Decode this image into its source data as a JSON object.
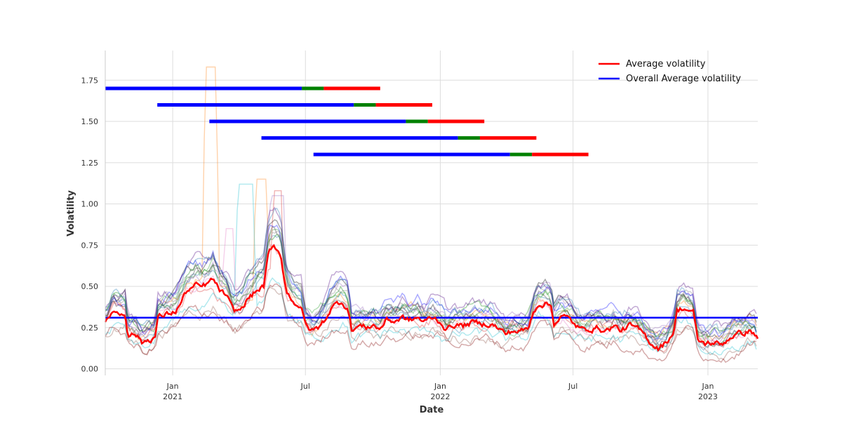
{
  "chart_data": {
    "type": "line",
    "xlabel": "Date",
    "ylabel": "Volatility",
    "xlim": [
      "2020-10-01",
      "2023-03-10"
    ],
    "ylim": [
      -0.04,
      1.93
    ],
    "y_ticks": [
      0.0,
      0.25,
      0.5,
      0.75,
      1.0,
      1.25,
      1.5,
      1.75
    ],
    "y_tick_labels": [
      "0.00",
      "0.25",
      "0.50",
      "0.75",
      "1.00",
      "1.25",
      "1.50",
      "1.75"
    ],
    "x_ticks": [
      {
        "date": "2021-01-01",
        "label": "Jan",
        "year": "2021"
      },
      {
        "date": "2021-07-01",
        "label": "Jul",
        "year": ""
      },
      {
        "date": "2022-01-01",
        "label": "Jan",
        "year": "2022"
      },
      {
        "date": "2022-07-01",
        "label": "Jul",
        "year": ""
      },
      {
        "date": "2023-01-01",
        "label": "Jan",
        "year": "2023"
      }
    ],
    "grid": true,
    "legend_position": "top-right",
    "legend": [
      {
        "label": "Average volatility",
        "color": "#ff0000"
      },
      {
        "label": "Overall Average volatility",
        "color": "#0000ff"
      }
    ],
    "average_volatility": {
      "name": "Average volatility",
      "color": "#ff0000",
      "points": [
        [
          "2020-10-01",
          0.27
        ],
        [
          "2020-10-06",
          0.29
        ],
        [
          "2020-10-12",
          0.36
        ],
        [
          "2020-10-20",
          0.33
        ],
        [
          "2020-10-28",
          0.34
        ],
        [
          "2020-11-01",
          0.22
        ],
        [
          "2020-11-12",
          0.21
        ],
        [
          "2020-11-20",
          0.16
        ],
        [
          "2020-12-01",
          0.18
        ],
        [
          "2020-12-08",
          0.2
        ],
        [
          "2020-12-12",
          0.31
        ],
        [
          "2020-12-25",
          0.33
        ],
        [
          "2021-01-05",
          0.35
        ],
        [
          "2021-01-12",
          0.4
        ],
        [
          "2021-01-20",
          0.47
        ],
        [
          "2021-02-01",
          0.5
        ],
        [
          "2021-02-10",
          0.49
        ],
        [
          "2021-02-20",
          0.52
        ],
        [
          "2021-02-25",
          0.54
        ],
        [
          "2021-03-05",
          0.48
        ],
        [
          "2021-03-15",
          0.44
        ],
        [
          "2021-03-25",
          0.34
        ],
        [
          "2021-04-05",
          0.36
        ],
        [
          "2021-04-12",
          0.42
        ],
        [
          "2021-04-20",
          0.45
        ],
        [
          "2021-04-28",
          0.48
        ],
        [
          "2021-05-05",
          0.5
        ],
        [
          "2021-05-12",
          0.7
        ],
        [
          "2021-05-20",
          0.73
        ],
        [
          "2021-05-28",
          0.7
        ],
        [
          "2021-06-05",
          0.47
        ],
        [
          "2021-06-15",
          0.41
        ],
        [
          "2021-06-25",
          0.38
        ],
        [
          "2021-07-01",
          0.26
        ],
        [
          "2021-07-10",
          0.23
        ],
        [
          "2021-07-20",
          0.25
        ],
        [
          "2021-07-28",
          0.3
        ],
        [
          "2021-08-05",
          0.37
        ],
        [
          "2021-08-12",
          0.39
        ],
        [
          "2021-08-20",
          0.41
        ],
        [
          "2021-08-28",
          0.37
        ],
        [
          "2021-09-02",
          0.24
        ],
        [
          "2021-09-12",
          0.26
        ],
        [
          "2021-09-22",
          0.25
        ],
        [
          "2021-10-01",
          0.27
        ],
        [
          "2021-10-10",
          0.24
        ],
        [
          "2021-10-20",
          0.3
        ],
        [
          "2021-10-30",
          0.29
        ],
        [
          "2021-11-10",
          0.31
        ],
        [
          "2021-11-20",
          0.29
        ],
        [
          "2021-12-01",
          0.31
        ],
        [
          "2021-12-10",
          0.28
        ],
        [
          "2021-12-20",
          0.31
        ],
        [
          "2021-12-31",
          0.29
        ],
        [
          "2022-01-10",
          0.24
        ],
        [
          "2022-01-20",
          0.27
        ],
        [
          "2022-02-01",
          0.26
        ],
        [
          "2022-02-12",
          0.28
        ],
        [
          "2022-02-25",
          0.27
        ],
        [
          "2022-03-10",
          0.28
        ],
        [
          "2022-03-20",
          0.25
        ],
        [
          "2022-03-31",
          0.21
        ],
        [
          "2022-04-10",
          0.23
        ],
        [
          "2022-04-22",
          0.23
        ],
        [
          "2022-05-01",
          0.24
        ],
        [
          "2022-05-08",
          0.35
        ],
        [
          "2022-05-15",
          0.4
        ],
        [
          "2022-05-25",
          0.4
        ],
        [
          "2022-06-01",
          0.38
        ],
        [
          "2022-06-05",
          0.28
        ],
        [
          "2022-06-15",
          0.32
        ],
        [
          "2022-06-25",
          0.3
        ],
        [
          "2022-07-05",
          0.26
        ],
        [
          "2022-07-15",
          0.23
        ],
        [
          "2022-07-25",
          0.25
        ],
        [
          "2022-08-05",
          0.25
        ],
        [
          "2022-08-15",
          0.23
        ],
        [
          "2022-08-25",
          0.26
        ],
        [
          "2022-09-05",
          0.23
        ],
        [
          "2022-09-15",
          0.26
        ],
        [
          "2022-09-25",
          0.24
        ],
        [
          "2022-10-05",
          0.21
        ],
        [
          "2022-10-15",
          0.16
        ],
        [
          "2022-10-25",
          0.13
        ],
        [
          "2022-11-05",
          0.16
        ],
        [
          "2022-11-15",
          0.23
        ],
        [
          "2022-11-20",
          0.35
        ],
        [
          "2022-11-28",
          0.37
        ],
        [
          "2022-12-05",
          0.36
        ],
        [
          "2022-12-12",
          0.34
        ],
        [
          "2022-12-18",
          0.17
        ],
        [
          "2022-12-28",
          0.15
        ],
        [
          "2023-01-10",
          0.16
        ],
        [
          "2023-01-18",
          0.14
        ],
        [
          "2023-01-28",
          0.18
        ],
        [
          "2023-02-05",
          0.21
        ],
        [
          "2023-02-15",
          0.21
        ],
        [
          "2023-02-25",
          0.23
        ],
        [
          "2023-03-05",
          0.22
        ],
        [
          "2023-03-10",
          0.18
        ]
      ]
    },
    "overall_average_volatility": {
      "name": "Overall Average volatility",
      "color": "#0000ff",
      "value": 0.31
    },
    "background_series": {
      "count": 16,
      "opacity": 0.35,
      "colors": [
        "#1f77b4",
        "#ff7f0e",
        "#2ca02c",
        "#d62728",
        "#9467bd",
        "#8c564b",
        "#e377c2",
        "#7f7f7f",
        "#17becf",
        "#000000",
        "#0000ff",
        "#008000",
        "#800000",
        "#4b0082",
        "#333333",
        "#1f77b4"
      ]
    },
    "window_bars": [
      {
        "y": 1.7,
        "segments": [
          {
            "from": "2020-10-01",
            "to": "2021-06-26",
            "color": "#0000ff"
          },
          {
            "from": "2021-06-26",
            "to": "2021-07-26",
            "color": "#008000"
          },
          {
            "from": "2021-07-26",
            "to": "2021-10-11",
            "color": "#ff0000"
          }
        ]
      },
      {
        "y": 1.6,
        "segments": [
          {
            "from": "2020-12-11",
            "to": "2021-09-05",
            "color": "#0000ff"
          },
          {
            "from": "2021-09-05",
            "to": "2021-10-05",
            "color": "#008000"
          },
          {
            "from": "2021-10-05",
            "to": "2021-12-21",
            "color": "#ff0000"
          }
        ]
      },
      {
        "y": 1.5,
        "segments": [
          {
            "from": "2021-02-20",
            "to": "2021-11-15",
            "color": "#0000ff"
          },
          {
            "from": "2021-11-15",
            "to": "2021-12-15",
            "color": "#008000"
          },
          {
            "from": "2021-12-15",
            "to": "2022-03-02",
            "color": "#ff0000"
          }
        ]
      },
      {
        "y": 1.4,
        "segments": [
          {
            "from": "2021-05-02",
            "to": "2022-01-25",
            "color": "#0000ff"
          },
          {
            "from": "2022-01-25",
            "to": "2022-02-24",
            "color": "#008000"
          },
          {
            "from": "2022-02-24",
            "to": "2022-05-12",
            "color": "#ff0000"
          }
        ]
      },
      {
        "y": 1.3,
        "segments": [
          {
            "from": "2021-07-12",
            "to": "2022-04-06",
            "color": "#0000ff"
          },
          {
            "from": "2022-04-06",
            "to": "2022-05-06",
            "color": "#008000"
          },
          {
            "from": "2022-05-06",
            "to": "2022-07-22",
            "color": "#ff0000"
          }
        ]
      }
    ],
    "spikes": [
      {
        "series": 1,
        "from": "2021-02-10",
        "to": "2021-03-05",
        "peak": 1.83
      },
      {
        "series": 1,
        "from": "2021-04-20",
        "to": "2021-05-12",
        "peak": 1.15
      },
      {
        "series": 8,
        "from": "2021-03-25",
        "to": "2021-04-25",
        "peak": 1.12
      },
      {
        "series": 4,
        "from": "2021-05-10",
        "to": "2021-06-05",
        "peak": 1.05
      },
      {
        "series": 3,
        "from": "2021-05-15",
        "to": "2021-06-01",
        "peak": 1.08
      },
      {
        "series": 6,
        "from": "2021-03-10",
        "to": "2021-03-28",
        "peak": 0.85
      }
    ]
  }
}
